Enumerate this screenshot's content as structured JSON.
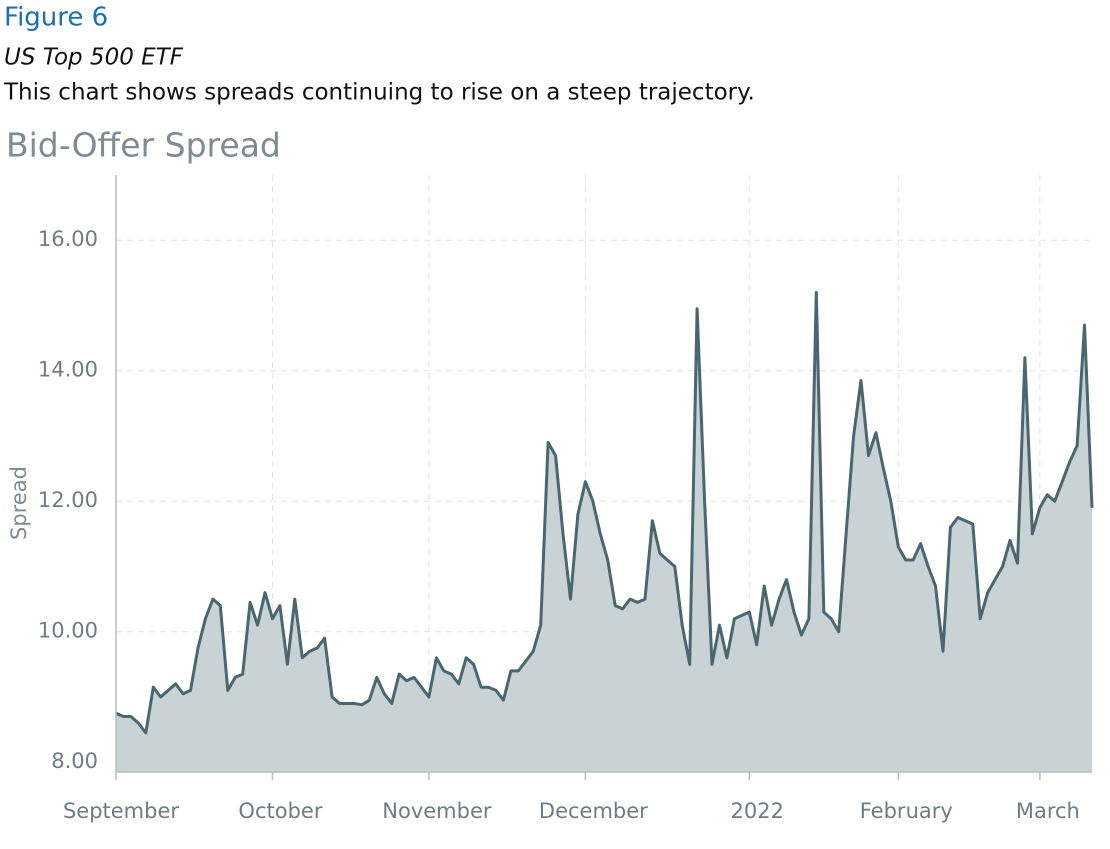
{
  "figure_label": "Figure 6",
  "heading": "US Top 500 ETF",
  "description": "This chart shows spreads continuing to rise on a steep trajectory.",
  "chart_data": {
    "type": "area",
    "title": "Bid-Offer Spread",
    "y_label": "Spread",
    "color": "#4a6670",
    "fill": "#c9d3d5",
    "grid": true,
    "categories": [
      "September",
      null,
      null,
      null,
      null,
      null,
      null,
      null,
      null,
      null,
      null,
      null,
      null,
      null,
      null,
      null,
      null,
      null,
      null,
      null,
      null,
      "October",
      null,
      null,
      null,
      null,
      null,
      null,
      null,
      null,
      null,
      null,
      null,
      null,
      null,
      null,
      null,
      null,
      null,
      null,
      null,
      null,
      "November",
      null,
      null,
      null,
      null,
      null,
      null,
      null,
      null,
      null,
      null,
      null,
      null,
      null,
      null,
      null,
      null,
      null,
      null,
      null,
      null,
      "December",
      null,
      null,
      null,
      null,
      null,
      null,
      null,
      null,
      null,
      null,
      null,
      null,
      null,
      null,
      null,
      null,
      null,
      null,
      null,
      null,
      null,
      "2022",
      null,
      null,
      null,
      null,
      null,
      null,
      null,
      null,
      null,
      null,
      null,
      null,
      null,
      null,
      null,
      null,
      null,
      null,
      null,
      "February",
      null,
      null,
      null,
      null,
      null,
      null,
      null,
      null,
      null,
      null,
      null,
      null,
      null,
      null,
      null,
      null,
      null,
      null,
      "March",
      null,
      null,
      null,
      null,
      null,
      null,
      null
    ],
    "values": [
      8.75,
      8.7,
      8.7,
      8.6,
      8.45,
      9.15,
      9.0,
      9.1,
      9.2,
      9.05,
      9.1,
      9.75,
      10.2,
      10.5,
      10.4,
      9.1,
      9.3,
      9.35,
      10.45,
      10.1,
      10.6,
      10.2,
      10.4,
      9.5,
      10.5,
      9.6,
      9.7,
      9.75,
      9.9,
      9.0,
      8.9,
      8.9,
      8.9,
      8.88,
      8.95,
      9.3,
      9.05,
      8.9,
      9.35,
      9.25,
      9.3,
      9.15,
      9.0,
      9.6,
      9.4,
      9.35,
      9.2,
      9.6,
      9.5,
      9.15,
      9.15,
      9.1,
      8.95,
      9.4,
      9.4,
      9.55,
      9.7,
      10.1,
      12.9,
      12.7,
      11.5,
      10.5,
      11.8,
      12.3,
      12.0,
      11.5,
      11.1,
      10.4,
      10.35,
      10.5,
      10.45,
      10.5,
      11.7,
      11.2,
      11.1,
      11.0,
      10.1,
      9.5,
      14.95,
      12.0,
      9.5,
      10.1,
      9.6,
      10.2,
      10.25,
      10.3,
      9.8,
      10.7,
      10.1,
      10.5,
      10.8,
      10.3,
      9.95,
      10.2,
      15.2,
      10.3,
      10.2,
      10.0,
      11.5,
      13.0,
      13.85,
      12.7,
      13.05,
      12.5,
      12.0,
      11.3,
      11.1,
      11.1,
      11.35,
      11.0,
      10.7,
      9.7,
      11.6,
      11.75,
      11.7,
      11.65,
      10.2,
      10.6,
      10.8,
      11.0,
      11.4,
      11.05,
      14.2,
      11.5,
      11.9,
      12.1,
      12.0,
      12.3,
      12.6,
      12.85,
      14.7,
      11.9
    ],
    "ylim": [
      7.85,
      17
    ],
    "yticks": [
      {
        "value": 8,
        "label": "8.00"
      },
      {
        "value": 10,
        "label": "10.00"
      },
      {
        "value": 12,
        "label": "12.00"
      },
      {
        "value": 14,
        "label": "14.00"
      },
      {
        "value": 16,
        "label": "16.00"
      }
    ]
  }
}
